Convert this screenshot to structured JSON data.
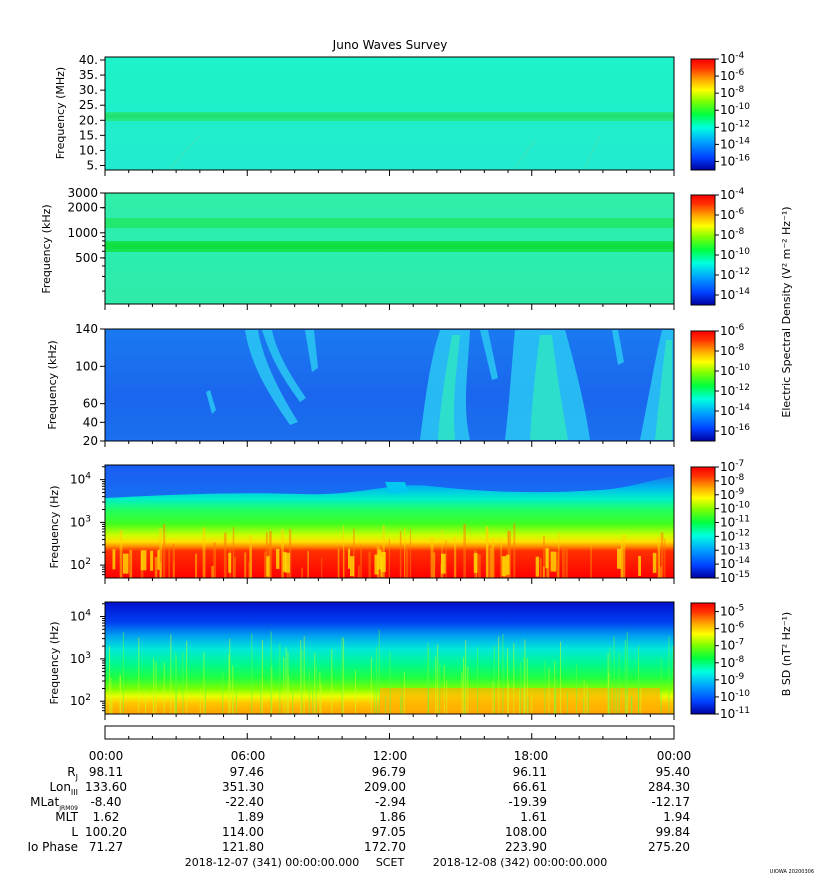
{
  "chart_data": {
    "type": "heatmap",
    "title": "Juno Waves Survey",
    "panels": [
      {
        "id": "p1",
        "ylabel": "Frequency (MHz)",
        "yscale": "linear",
        "ylim": [
          3.5,
          41
        ],
        "yticks": [
          5,
          10,
          15,
          20,
          25,
          30,
          35,
          40
        ],
        "ytick_labels": [
          "5.",
          "10.",
          "15.",
          "20.",
          "25.",
          "30.",
          "35.",
          "40."
        ],
        "colorbar": {
          "range_log10": [
            -17,
            -4
          ],
          "ticks_log10": [
            -4,
            -6,
            -8,
            -10,
            -12,
            -14,
            -16
          ],
          "tick_labels": [
            "-4",
            "-6",
            "-8",
            "-10",
            "-12",
            "-14",
            "-16"
          ]
        }
      },
      {
        "id": "p2",
        "ylabel": "Frequency (kHz)",
        "yscale": "log",
        "ylim": [
          140,
          3000
        ],
        "yticks": [
          500,
          1000,
          2000,
          3000
        ],
        "ytick_labels": [
          "500",
          "1000",
          "2000",
          "3000"
        ],
        "colorbar": {
          "range_log10": [
            -15,
            -4
          ],
          "ticks_log10": [
            -4,
            -6,
            -8,
            -10,
            -12,
            -14
          ],
          "tick_labels": [
            "-4",
            "-6",
            "-8",
            "-10",
            "-12",
            "-14"
          ]
        }
      },
      {
        "id": "p3",
        "ylabel": "Frequency (kHz)",
        "yscale": "linear",
        "ylim": [
          20,
          140
        ],
        "yticks": [
          20,
          40,
          60,
          100,
          140
        ],
        "ytick_labels": [
          "20",
          "40",
          "60",
          "100",
          "140"
        ],
        "colorbar": {
          "range_log10": [
            -17,
            -6
          ],
          "ticks_log10": [
            -6,
            -8,
            -10,
            -12,
            -14,
            -16
          ],
          "tick_labels": [
            "-6",
            "-8",
            "-10",
            "-12",
            "-14",
            "-16"
          ]
        }
      },
      {
        "id": "p4",
        "ylabel": "Frequency (Hz)",
        "yscale": "log",
        "ylim": [
          50,
          22000
        ],
        "yticks": [
          100,
          1000,
          10000
        ],
        "ytick_exponents": [
          "2",
          "3",
          "4"
        ],
        "colorbar": {
          "range_log10": [
            -15,
            -7
          ],
          "ticks_log10": [
            -7,
            -8,
            -9,
            -10,
            -11,
            -12,
            -13,
            -14,
            -15
          ],
          "tick_labels": [
            "-7",
            "-8",
            "-9",
            "-10",
            "-11",
            "-12",
            "-13",
            "-14",
            "-15"
          ]
        }
      },
      {
        "id": "p5",
        "ylabel": "Frequency (Hz)",
        "yscale": "log",
        "ylim": [
          50,
          22000
        ],
        "yticks": [
          100,
          1000,
          10000
        ],
        "ytick_exponents": [
          "2",
          "3",
          "4"
        ],
        "colorbar": {
          "range_log10": [
            -11,
            -4.5
          ],
          "ticks_log10": [
            -5,
            -6,
            -7,
            -8,
            -9,
            -10,
            -11
          ],
          "tick_labels": [
            "-5",
            "-6",
            "-7",
            "-8",
            "-9",
            "-10",
            "-11"
          ]
        }
      }
    ],
    "colorbar_titles": {
      "electric": "Electric Spectral Density (V² m⁻² Hz⁻¹)",
      "magnetic": "B SD (nT² Hz⁻¹)"
    },
    "x_ticks": [
      "00:00",
      "06:00",
      "12:00",
      "18:00",
      "00:00"
    ],
    "ephemeris": [
      {
        "label": "R",
        "sub": "J",
        "values": [
          "98.11",
          "97.46",
          "96.79",
          "96.11",
          "95.40"
        ]
      },
      {
        "label": "Lon",
        "sub": "III",
        "values": [
          "133.60",
          "351.30",
          "209.00",
          "66.61",
          "284.30"
        ]
      },
      {
        "label": "MLat",
        "sub": "JRM09",
        "values": [
          "-8.40",
          "-22.40",
          "-2.94",
          "-19.39",
          "-12.17"
        ]
      },
      {
        "label": "MLT",
        "sub": "",
        "values": [
          "1.62",
          "1.89",
          "1.86",
          "1.61",
          "1.94"
        ]
      },
      {
        "label": "L",
        "sub": "",
        "values": [
          "100.20",
          "114.00",
          "97.05",
          "108.00",
          "99.84"
        ]
      },
      {
        "label": "Io Phase",
        "sub": "",
        "values": [
          "71.27",
          "121.80",
          "172.70",
          "223.90",
          "275.20"
        ]
      }
    ],
    "time_range": {
      "start": "2018-12-07 (341) 00:00:00.000",
      "axis_name": "SCET",
      "end": "2018-12-08 (342) 00:00:00.000"
    },
    "credit": "UIOWA 20200306",
    "colors": {
      "colormap": [
        "#0000a0",
        "#0040ff",
        "#00a0ff",
        "#00ffe0",
        "#00ff40",
        "#80ff00",
        "#ffff00",
        "#ffa000",
        "#ff3000",
        "#ff0000"
      ],
      "p1_background": "#1ef0c8",
      "p2_background": "#28eeb0",
      "p3_background": "#1a66ee",
      "p5_background": "#00d0f0"
    }
  }
}
